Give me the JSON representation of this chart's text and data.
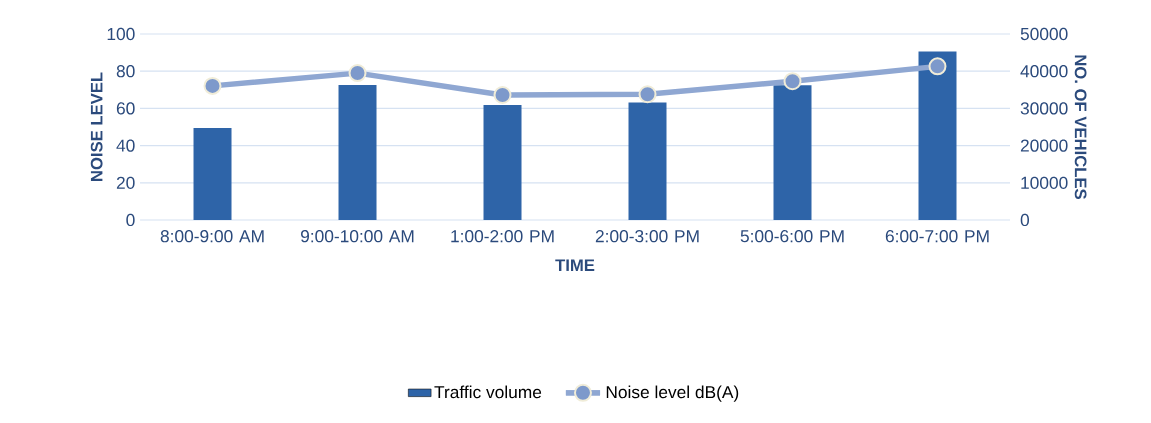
{
  "chart_data": {
    "type": "bar",
    "xlabel": "TIME",
    "ylabel": "NOISE LEVEL",
    "y2label": "NO. OF VEHICLES",
    "categories": [
      "8:00-9:00 AM",
      "9:00-10:00 AM",
      "1:00-2:00 PM",
      "2:00-3:00 PM",
      "5:00-6:00 PM",
      "6:00-7:00 PM"
    ],
    "series": [
      {
        "name": "Traffic volume",
        "axis": "y2",
        "color": "#2e64a8",
        "values": [
          24700,
          36300,
          30900,
          31600,
          36200,
          45300
        ]
      },
      {
        "name": "Noise level dB(A)",
        "type": "line",
        "axis": "y",
        "color": "#8fa7d2",
        "marker": "circle",
        "values": [
          72.1,
          79,
          67.2,
          67.6,
          74.6,
          82.6
        ]
      }
    ],
    "ylim": [
      0,
      100
    ],
    "yticks": [
      0,
      20,
      40,
      60,
      80,
      100
    ],
    "y2lim": [
      0,
      50000
    ],
    "y2ticks": [
      0,
      10000,
      20000,
      30000,
      40000,
      50000
    ],
    "grid": "y",
    "legend": "bottom"
  }
}
